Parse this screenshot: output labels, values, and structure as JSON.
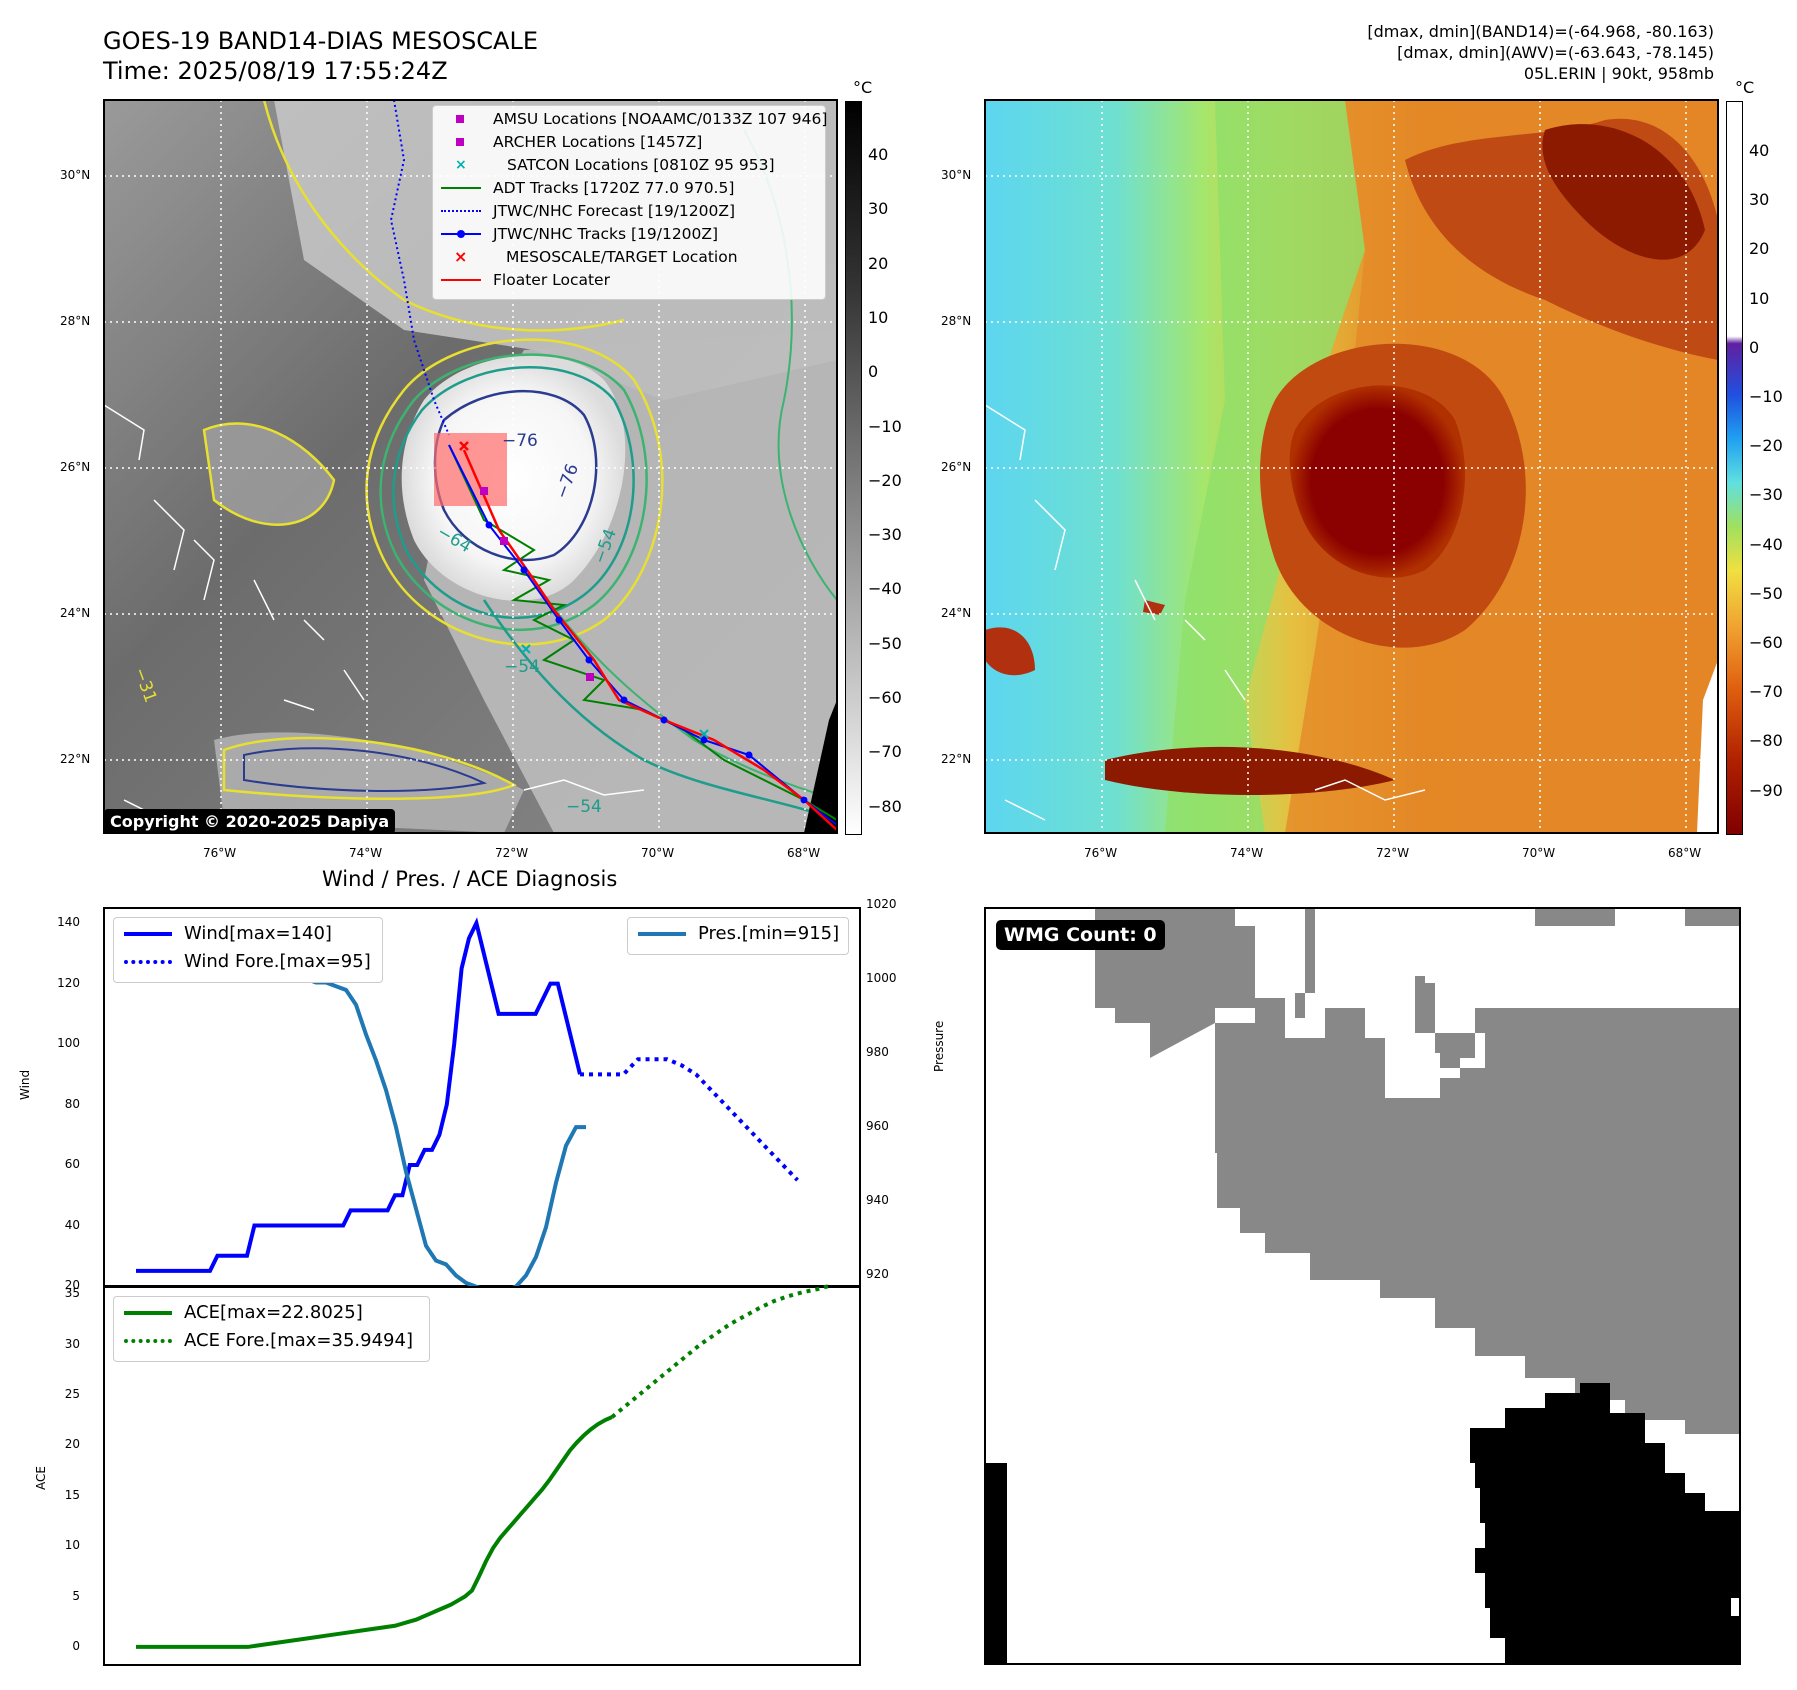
{
  "header": {
    "title_line1": "GOES-19 BAND14-DIAS MESOSCALE",
    "title_line2": "Time: 2025/08/19 17:55:24Z",
    "right_line1": "[dmax, dmin](BAND14)=(-64.968, -80.163)",
    "right_line2": "[dmax, dmin](AWV)=(-63.643, -78.145)",
    "right_line3": "05L.ERIN | 90kt, 958mb"
  },
  "map_ir": {
    "unit": "°C",
    "colorbar_ticks": [
      "40",
      "30",
      "20",
      "10",
      "0",
      "−10",
      "−20",
      "−30",
      "−40",
      "−50",
      "−60",
      "−70",
      "−80"
    ],
    "lat_ticks": [
      "30°N",
      "28°N",
      "26°N",
      "24°N",
      "22°N"
    ],
    "lon_ticks": [
      "76°W",
      "74°W",
      "72°W",
      "70°W",
      "68°W"
    ],
    "contour_labels": [
      "−76",
      "−76",
      "−64",
      "−54",
      "−54",
      "−54",
      "−31"
    ],
    "copyright": "Copyright © 2020-2025 Dapiya",
    "legend": [
      {
        "label": "AMSU Locations [NOAAMC/0133Z 107 946]",
        "color": "#c000c0",
        "marker": "square"
      },
      {
        "label": "ARCHER Locations [1457Z]",
        "color": "#c000c0",
        "marker": "square"
      },
      {
        "label": "SATCON Locations [0810Z 95 953]",
        "color": "#00b0b0",
        "marker": "x"
      },
      {
        "label": "ADT Tracks [1720Z 77.0 970.5]",
        "color": "#008000",
        "marker": "line"
      },
      {
        "label": "JTWC/NHC Forecast [19/1200Z]",
        "color": "#0000ff",
        "marker": "dotted"
      },
      {
        "label": "JTWC/NHC Tracks [19/1200Z]",
        "color": "#0000ff",
        "marker": "line-dot"
      },
      {
        "label": "MESOSCALE/TARGET Location",
        "color": "#ff0000",
        "marker": "x"
      },
      {
        "label": "Floater Locater",
        "color": "#ff0000",
        "marker": "line"
      }
    ]
  },
  "map_awv": {
    "unit": "°C",
    "colorbar_ticks": [
      "40",
      "30",
      "20",
      "10",
      "0",
      "−10",
      "−20",
      "−30",
      "−40",
      "−50",
      "−60",
      "−70",
      "−80",
      "−90"
    ],
    "lat_ticks": [
      "30°N",
      "28°N",
      "26°N",
      "24°N",
      "22°N"
    ],
    "lon_ticks": [
      "76°W",
      "74°W",
      "72°W",
      "70°W",
      "68°W"
    ]
  },
  "wmg": {
    "badge": "WMG Count: 0"
  },
  "chart_data": [
    {
      "type": "line",
      "title": "Wind / Pres. / ACE Diagnosis",
      "ylabel": "Wind",
      "y2label": "Pressure",
      "ylim": [
        20,
        145
      ],
      "y2lim": [
        915,
        1020
      ],
      "yticks": [
        "140",
        "120",
        "100",
        "80",
        "60",
        "40",
        "20"
      ],
      "y2ticks": [
        "1020",
        "1000",
        "980",
        "960",
        "940",
        "920"
      ],
      "legend_left": [
        "Wind[max=140]",
        "Wind Fore.[max=95]"
      ],
      "legend_right": [
        "Pres.[min=915]"
      ],
      "series": [
        {
          "name": "Wind[max=140]",
          "style": "solid",
          "color": "#0000ff",
          "values": [
            25,
            25,
            25,
            25,
            25,
            25,
            25,
            25,
            25,
            25,
            25,
            30,
            30,
            30,
            30,
            30,
            40,
            40,
            40,
            40,
            40,
            40,
            40,
            40,
            40,
            40,
            40,
            40,
            40,
            45,
            45,
            45,
            45,
            45,
            45,
            50,
            50,
            60,
            60,
            65,
            65,
            70,
            80,
            100,
            125,
            135,
            140,
            130,
            120,
            110,
            110,
            110,
            110,
            110,
            110,
            115,
            120,
            120,
            110,
            100,
            90
          ]
        },
        {
          "name": "Wind Fore.[max=95]",
          "style": "dotted",
          "color": "#0000ff",
          "values": [
            90,
            90,
            90,
            90,
            95,
            95,
            95,
            93,
            90,
            85,
            80,
            75,
            70,
            65,
            60,
            55
          ]
        },
        {
          "name": "Pres.[min=915]",
          "style": "solid",
          "color": "#1f77b4",
          "values": [
            1015,
            1015,
            1010,
            1009,
            1008,
            1008,
            1008,
            1007,
            1006,
            1005,
            1004,
            1004,
            1003,
            1003,
            1002,
            1002,
            1001,
            1000,
            999,
            999,
            998,
            997,
            993,
            985,
            978,
            970,
            960,
            948,
            938,
            928,
            924,
            923,
            920,
            918,
            917,
            916,
            915,
            916,
            917,
            920,
            925,
            933,
            945,
            955,
            960,
            960
          ]
        }
      ]
    },
    {
      "type": "line",
      "ylabel": "ACE",
      "ylim": [
        -1,
        36.5
      ],
      "yticks": [
        "35",
        "30",
        "25",
        "20",
        "15",
        "10",
        "5",
        "0"
      ],
      "legend": [
        "ACE[max=22.8025]",
        "ACE Fore.[max=35.9494]"
      ],
      "series": [
        {
          "name": "ACE[max=22.8025]",
          "style": "solid",
          "color": "#008000",
          "values": [
            0,
            0,
            0,
            0,
            0,
            0,
            0,
            0,
            0,
            0,
            0,
            0,
            0,
            0,
            0,
            0,
            0,
            0.1,
            0.2,
            0.3,
            0.4,
            0.5,
            0.6,
            0.7,
            0.8,
            0.9,
            1.0,
            1.1,
            1.2,
            1.3,
            1.4,
            1.5,
            1.6,
            1.7,
            1.8,
            1.9,
            2.0,
            2.1,
            2.3,
            2.5,
            2.7,
            3.0,
            3.3,
            3.6,
            3.9,
            4.2,
            4.6,
            5.0,
            5.6,
            7.0,
            8.5,
            9.8,
            10.8,
            11.6,
            12.4,
            13.2,
            14.0,
            14.8,
            15.6,
            16.5,
            17.5,
            18.5,
            19.5,
            20.3,
            21.0,
            21.6,
            22.1,
            22.5,
            22.8
          ]
        },
        {
          "name": "ACE Fore.[max=35.9494]",
          "style": "dotted",
          "color": "#008000",
          "values": [
            22.8,
            24.0,
            25.2,
            26.4,
            27.6,
            28.8,
            30.0,
            31.0,
            32.0,
            32.8,
            33.6,
            34.3,
            34.8,
            35.2,
            35.5,
            35.9
          ]
        }
      ]
    }
  ]
}
